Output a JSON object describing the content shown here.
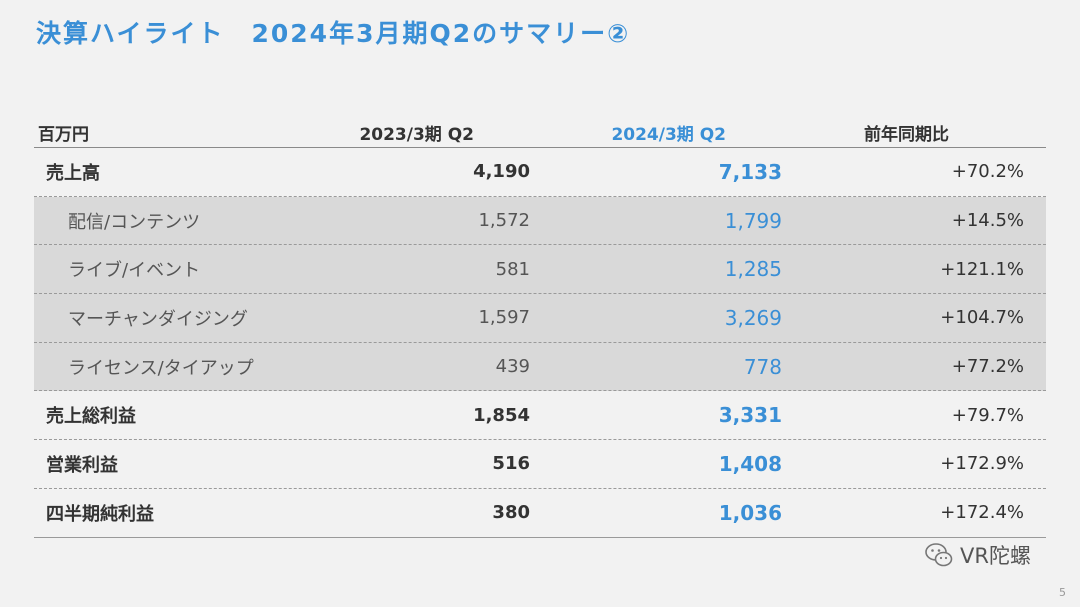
{
  "slide": {
    "title": "決算ハイライト　2024年3月期Q2のサマリー②",
    "page_number": "5",
    "watermark": "VR陀螺"
  },
  "table": {
    "headers": {
      "label": "百万円",
      "prev": "2023/3期 Q2",
      "curr": "2024/3期 Q2",
      "yoy": "前年同期比"
    },
    "rows": [
      {
        "label": "売上高",
        "prev": "4,190",
        "curr": "7,133",
        "yoy": "+70.2%",
        "type": "main"
      },
      {
        "label": "配信/コンテンツ",
        "prev": "1,572",
        "curr": "1,799",
        "yoy": "+14.5%",
        "type": "sub"
      },
      {
        "label": "ライブ/イベント",
        "prev": "581",
        "curr": "1,285",
        "yoy": "+121.1%",
        "type": "sub"
      },
      {
        "label": "マーチャンダイジング",
        "prev": "1,597",
        "curr": "3,269",
        "yoy": "+104.7%",
        "type": "sub"
      },
      {
        "label": "ライセンス/タイアップ",
        "prev": "439",
        "curr": "778",
        "yoy": "+77.2%",
        "type": "sub"
      },
      {
        "label": "売上総利益",
        "prev": "1,854",
        "curr": "3,331",
        "yoy": "+79.7%",
        "type": "main"
      },
      {
        "label": "営業利益",
        "prev": "516",
        "curr": "1,408",
        "yoy": "+172.9%",
        "type": "main"
      },
      {
        "label": "四半期純利益",
        "prev": "380",
        "curr": "1,036",
        "yoy": "+172.4%",
        "type": "main"
      }
    ]
  },
  "colors": {
    "accent": "#3a8fd6",
    "background": "#f2f2f2",
    "sub_row_fill": "#d9d9d9"
  }
}
